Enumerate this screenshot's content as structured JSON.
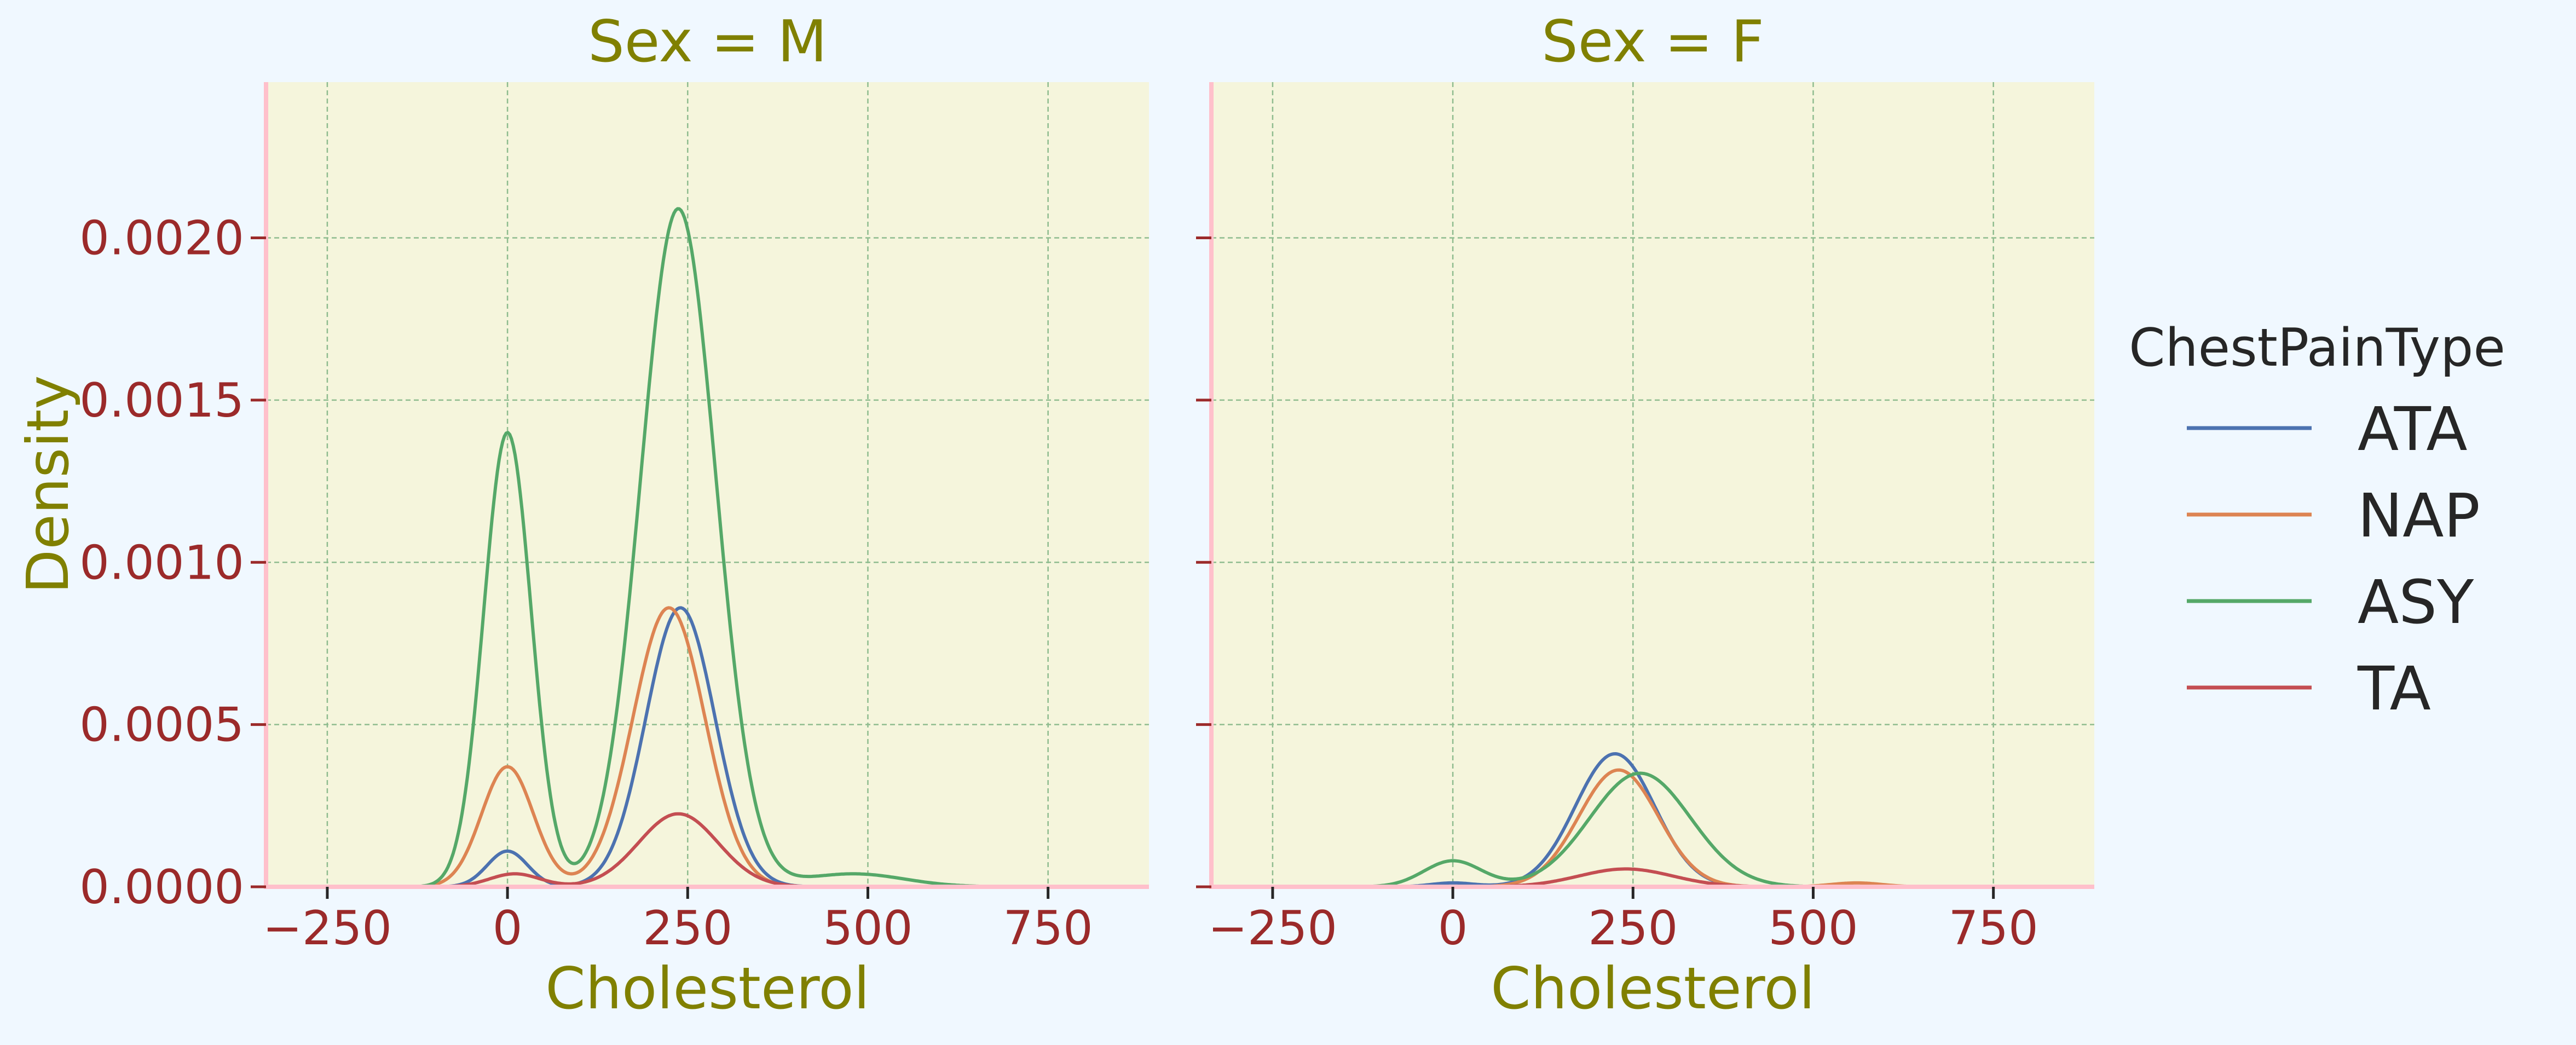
{
  "chart_data": {
    "type": "line",
    "subtype": "kde",
    "facet_variable": "Sex",
    "x_label": "Cholesterol",
    "y_label": "Density",
    "xlim": [
      -335,
      890
    ],
    "ylim": [
      0,
      0.00248
    ],
    "x_ticks": [
      -250,
      0,
      250,
      500,
      750
    ],
    "x_tick_labels": [
      "−250",
      "0",
      "250",
      "500",
      "750"
    ],
    "y_ticks": [
      0,
      0.0005,
      0.001,
      0.0015,
      0.002
    ],
    "y_tick_labels": [
      "0.0000",
      "0.0005",
      "0.0010",
      "0.0015",
      "0.0020"
    ],
    "grid": true,
    "legend": {
      "title": "ChestPainType",
      "position": "right",
      "entries": [
        "ATA",
        "NAP",
        "ASY",
        "TA"
      ]
    },
    "colors": {
      "ATA": "#4c72b0",
      "NAP": "#dd8452",
      "ASY": "#55a868",
      "TA": "#c44e52",
      "page_background": "#f0f8ff",
      "plot_background": "#f5f5dc",
      "title_color": "#808000",
      "tick_color": "#9b2a2a",
      "spine_color": "#ffc0cb",
      "grid_color": "#8fbc8f"
    },
    "facets": [
      {
        "title": "Sex = M",
        "series": [
          {
            "name": "ATA",
            "components": [
              {
                "weight": 0.00011,
                "mean": 0,
                "sd": 28
              },
              {
                "weight": 0.00086,
                "mean": 240,
                "sd": 48
              }
            ]
          },
          {
            "name": "NAP",
            "components": [
              {
                "weight": 0.00037,
                "mean": 0,
                "sd": 36
              },
              {
                "weight": 0.00086,
                "mean": 224,
                "sd": 50
              }
            ]
          },
          {
            "name": "ASY",
            "components": [
              {
                "weight": 0.0014,
                "mean": 0,
                "sd": 33
              },
              {
                "weight": 0.00209,
                "mean": 237,
                "sd": 52
              },
              {
                "weight": 4e-05,
                "mean": 480,
                "sd": 70
              }
            ]
          },
          {
            "name": "TA",
            "components": [
              {
                "weight": 4e-05,
                "mean": 10,
                "sd": 35
              },
              {
                "weight": 0.000225,
                "mean": 237,
                "sd": 55
              }
            ]
          }
        ]
      },
      {
        "title": "Sex = F",
        "series": [
          {
            "name": "ATA",
            "components": [
              {
                "weight": 1.2e-05,
                "mean": 0,
                "sd": 30
              },
              {
                "weight": 0.00041,
                "mean": 225,
                "sd": 55
              }
            ]
          },
          {
            "name": "NAP",
            "components": [
              {
                "weight": 0.00036,
                "mean": 230,
                "sd": 55
              },
              {
                "weight": 1.2e-05,
                "mean": 560,
                "sd": 35
              }
            ]
          },
          {
            "name": "ASY",
            "components": [
              {
                "weight": 8e-05,
                "mean": 0,
                "sd": 40
              },
              {
                "weight": 0.00035,
                "mean": 260,
                "sd": 70
              }
            ]
          },
          {
            "name": "TA",
            "components": [
              {
                "weight": 5.5e-05,
                "mean": 240,
                "sd": 65
              }
            ]
          }
        ]
      }
    ]
  }
}
